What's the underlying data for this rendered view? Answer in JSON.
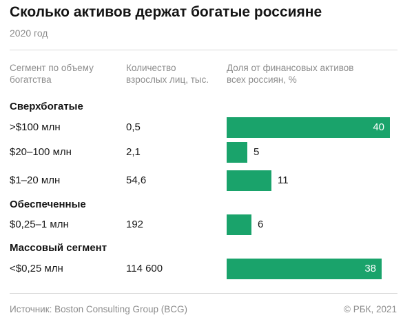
{
  "title": "Сколько активов держат богатые россияне",
  "subtitle": "2020 год",
  "columns": {
    "segment": "Сегмент по объему богатства",
    "count": "Количество взрослых лиц, тыс.",
    "share": "Доля от финансовых активов всех россиян, %"
  },
  "groups": [
    {
      "label": "Сверхбогатые"
    },
    {
      "label": "Обеспеченные"
    },
    {
      "label": "Массовый сегмент"
    }
  ],
  "rows": [
    {
      "segment": ">$100 млн",
      "count": "0,5",
      "share_label": "40"
    },
    {
      "segment": "$20–100 млн",
      "count": "2,1",
      "share_label": "5"
    },
    {
      "segment": "$1–20 млн",
      "count": "54,6",
      "share_label": "11"
    },
    {
      "segment": "$0,25–1 млн",
      "count": "192",
      "share_label": "6"
    },
    {
      "segment": "<$0,25 млн",
      "count": "114 600",
      "share_label": "38"
    }
  ],
  "chart_data": {
    "type": "bar",
    "orientation": "horizontal",
    "title": "Сколько активов держат богатые россияне",
    "subtitle": "2020 год",
    "categories": [
      ">$100 млн",
      "$20–100 млн",
      "$1–20 млн",
      "$0,25–1 млн",
      "<$0,25 млн"
    ],
    "values": [
      40,
      5,
      11,
      6,
      38
    ],
    "xlim": [
      0,
      40
    ],
    "grid": false
  },
  "colors": {
    "bar": "#1aa36b",
    "muted": "#8c8c8c",
    "text": "#1a1a1a"
  },
  "footer": {
    "source": "Источник: Boston Consulting Group (BCG)",
    "copyright": "© РБК, 2021"
  }
}
